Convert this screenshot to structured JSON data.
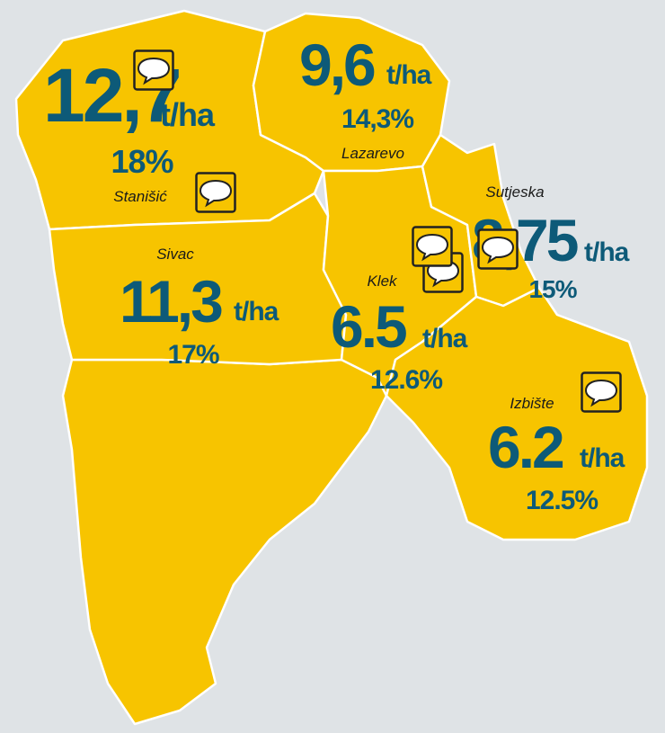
{
  "regions": [
    {
      "name": "Stanišić",
      "value": "12,7",
      "unit": "t/ha",
      "share": "18%"
    },
    {
      "name": "Lazarevo",
      "value": "9,6",
      "unit": "t/ha",
      "share": "14,3%"
    },
    {
      "name": "Sivac",
      "value": "11,3",
      "unit": "t/ha",
      "share": "17%"
    },
    {
      "name": "Klek",
      "value": "6.5",
      "unit": "t/ha",
      "share": "12.6%"
    },
    {
      "name": "Sutjeska",
      "value": "8,75",
      "unit": "t/ha",
      "share": "15%"
    },
    {
      "name": "Izbište",
      "value": "6.2",
      "unit": "t/ha",
      "share": "12.5%"
    }
  ]
}
